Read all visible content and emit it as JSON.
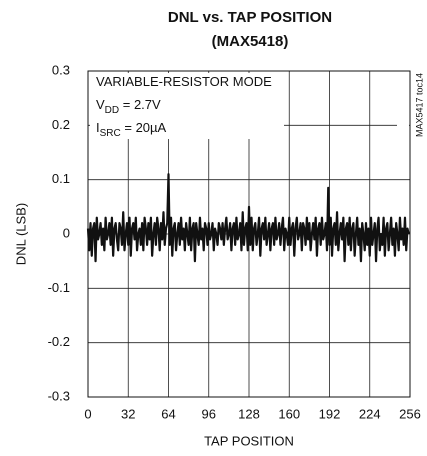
{
  "chart_data": {
    "type": "line",
    "title": "DNL vs. TAP POSITION",
    "subtitle": "(MAX5418)",
    "x_label": "TAP POSITION",
    "y_label": "DNL (LSB)",
    "annotations": [
      {
        "text": "VARIABLE-RESISTOR MODE"
      },
      {
        "text": "V",
        "sub": "DD",
        "rest": " = 2.7V"
      },
      {
        "text": "I",
        "sub": "SRC",
        "rest": " = 20µA"
      }
    ],
    "side_note": "MAX5417 toc14",
    "color": "#111111",
    "grid": true,
    "xlim": [
      0,
      256
    ],
    "xticks": [
      0,
      32,
      64,
      96,
      128,
      160,
      192,
      224,
      256
    ],
    "ylim": [
      -0.3,
      0.3
    ],
    "yticks": [
      0.3,
      0.2,
      0.1,
      0,
      -0.1,
      -0.2,
      -0.3
    ],
    "x": [
      0,
      1,
      2,
      3,
      4,
      5,
      6,
      7,
      8,
      9,
      10,
      11,
      12,
      13,
      14,
      15,
      16,
      17,
      18,
      19,
      20,
      21,
      22,
      23,
      24,
      25,
      26,
      27,
      28,
      29,
      30,
      31,
      32,
      33,
      34,
      35,
      36,
      37,
      38,
      39,
      40,
      41,
      42,
      43,
      44,
      45,
      46,
      47,
      48,
      49,
      50,
      51,
      52,
      53,
      54,
      55,
      56,
      57,
      58,
      59,
      60,
      61,
      62,
      63,
      64,
      65,
      66,
      67,
      68,
      69,
      70,
      71,
      72,
      73,
      74,
      75,
      76,
      77,
      78,
      79,
      80,
      81,
      82,
      83,
      84,
      85,
      86,
      87,
      88,
      89,
      90,
      91,
      92,
      93,
      94,
      95,
      96,
      97,
      98,
      99,
      100,
      101,
      102,
      103,
      104,
      105,
      106,
      107,
      108,
      109,
      110,
      111,
      112,
      113,
      114,
      115,
      116,
      117,
      118,
      119,
      120,
      121,
      122,
      123,
      124,
      125,
      126,
      127,
      128,
      129,
      130,
      131,
      132,
      133,
      134,
      135,
      136,
      137,
      138,
      139,
      140,
      141,
      142,
      143,
      144,
      145,
      146,
      147,
      148,
      149,
      150,
      151,
      152,
      153,
      154,
      155,
      156,
      157,
      158,
      159,
      160,
      161,
      162,
      163,
      164,
      165,
      166,
      167,
      168,
      169,
      170,
      171,
      172,
      173,
      174,
      175,
      176,
      177,
      178,
      179,
      180,
      181,
      182,
      183,
      184,
      185,
      186,
      187,
      188,
      189,
      190,
      191,
      192,
      193,
      194,
      195,
      196,
      197,
      198,
      199,
      200,
      201,
      202,
      203,
      204,
      205,
      206,
      207,
      208,
      209,
      210,
      211,
      212,
      213,
      214,
      215,
      216,
      217,
      218,
      219,
      220,
      221,
      222,
      223,
      224,
      225,
      226,
      227,
      228,
      229,
      230,
      231,
      232,
      233,
      234,
      235,
      236,
      237,
      238,
      239,
      240,
      241,
      242,
      243,
      244,
      245,
      246,
      247,
      248,
      249,
      250,
      251,
      252,
      253,
      254,
      255
    ],
    "values": [
      0.01,
      -0.03,
      0.02,
      -0.04,
      0.01,
      0.02,
      -0.05,
      0.03,
      -0.01,
      0.0,
      0.02,
      -0.02,
      0.01,
      -0.03,
      0.03,
      -0.01,
      0.0,
      0.02,
      -0.02,
      0.03,
      -0.04,
      0.01,
      0.02,
      -0.01,
      -0.03,
      0.02,
      0.01,
      -0.02,
      0.04,
      -0.03,
      0.0,
      0.02,
      -0.02,
      0.03,
      -0.04,
      0.01,
      0.02,
      -0.01,
      0.03,
      -0.03,
      0.0,
      0.01,
      -0.02,
      0.02,
      -0.03,
      0.03,
      0.01,
      -0.02,
      0.02,
      -0.01,
      0.03,
      -0.04,
      0.0,
      0.02,
      -0.02,
      0.03,
      0.01,
      -0.03,
      0.02,
      -0.01,
      0.04,
      -0.02,
      0.01,
      0.02,
      0.11,
      -0.02,
      0.03,
      -0.04,
      0.01,
      0.02,
      -0.03,
      0.0,
      0.02,
      -0.02,
      0.03,
      -0.01,
      0.01,
      -0.03,
      0.02,
      0.0,
      -0.02,
      0.03,
      -0.03,
      0.01,
      0.02,
      -0.05,
      0.02,
      0.0,
      -0.02,
      0.03,
      -0.01,
      0.01,
      -0.03,
      0.02,
      0.01,
      -0.02,
      0.02,
      -0.01,
      0.0,
      0.02,
      -0.03,
      0.01,
      0.0,
      -0.02,
      0.02,
      0.01,
      -0.01,
      0.02,
      -0.02,
      0.01,
      0.03,
      -0.01,
      0.0,
      0.02,
      -0.03,
      0.01,
      0.02,
      -0.02,
      0.03,
      -0.01,
      0.0,
      0.02,
      -0.03,
      0.04,
      -0.02,
      0.01,
      0.02,
      -0.03,
      0.05,
      -0.02,
      0.03,
      -0.03,
      0.01,
      0.02,
      -0.02,
      0.0,
      0.03,
      -0.04,
      0.01,
      0.02,
      -0.01,
      0.03,
      -0.02,
      0.0,
      0.02,
      -0.03,
      0.01,
      0.02,
      -0.02,
      0.03,
      -0.01,
      0.0,
      0.02,
      -0.02,
      0.01,
      0.03,
      -0.03,
      0.01,
      0.0,
      -0.02,
      0.03,
      -0.02,
      0.01,
      0.02,
      -0.04,
      0.01,
      0.03,
      -0.01,
      0.0,
      0.02,
      -0.03,
      0.02,
      0.01,
      -0.02,
      0.03,
      -0.01,
      0.02,
      -0.03,
      0.0,
      0.02,
      -0.01,
      0.03,
      -0.04,
      0.01,
      0.02,
      -0.02,
      0.03,
      -0.01,
      0.0,
      0.02,
      -0.03,
      0.085,
      -0.02,
      0.03,
      -0.04,
      0.01,
      0.02,
      -0.02,
      0.04,
      -0.03,
      0.0,
      0.02,
      -0.01,
      0.03,
      -0.05,
      0.01,
      0.02,
      -0.02,
      0.03,
      -0.03,
      0.01,
      0.02,
      -0.04,
      0.0,
      0.03,
      -0.02,
      0.01,
      -0.05,
      0.02,
      0.0,
      -0.03,
      0.02,
      -0.02,
      0.01,
      -0.04,
      0.03,
      -0.02,
      0.0,
      0.02,
      -0.05,
      0.01,
      0.03,
      -0.03,
      0.0,
      -0.02,
      0.03,
      -0.04,
      0.01,
      0.02,
      -0.03,
      0.0,
      0.03,
      -0.02,
      0.01,
      -0.04,
      0.02,
      0.0,
      -0.03,
      0.03,
      -0.01,
      0.01,
      -0.02,
      0.03,
      -0.03,
      0.01,
      0.0
    ]
  }
}
